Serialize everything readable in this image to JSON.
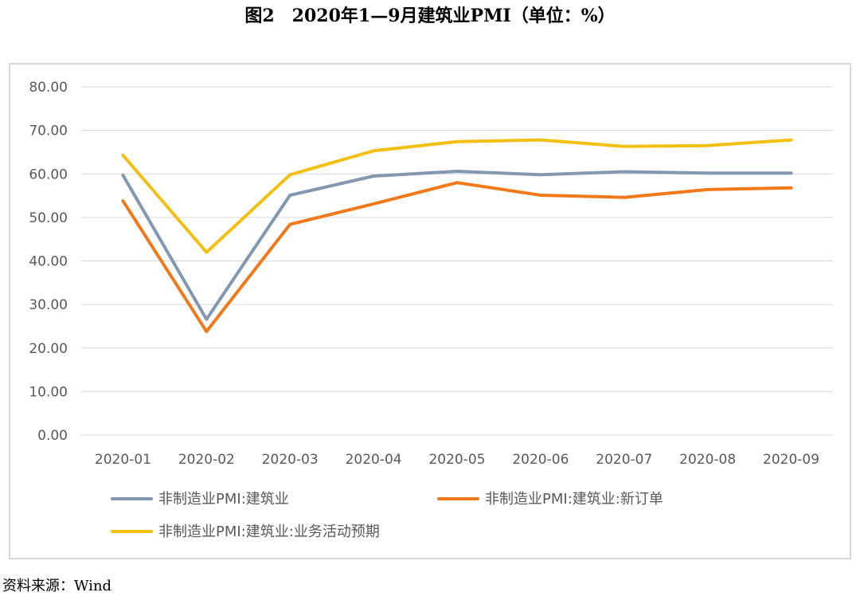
{
  "title": "图2　2020年1—9月建筑业PMI（单位：%）",
  "source": "资料来源：Wind",
  "chart_data": {
    "type": "line",
    "categories": [
      "2020-01",
      "2020-02",
      "2020-03",
      "2020-04",
      "2020-05",
      "2020-06",
      "2020-07",
      "2020-08",
      "2020-09"
    ],
    "y_ticks": [
      "0.00",
      "10.00",
      "20.00",
      "30.00",
      "40.00",
      "50.00",
      "60.00",
      "70.00",
      "80.00"
    ],
    "ylim": [
      0,
      80
    ],
    "grid": true,
    "legend_position": "bottom",
    "series": [
      {
        "name": "非制造业PMI:建筑业",
        "color": "#8497B0",
        "values": [
          59.7,
          26.6,
          55.1,
          59.5,
          60.6,
          59.8,
          60.5,
          60.2,
          60.2
        ]
      },
      {
        "name": "非制造业PMI:建筑业:新订单",
        "color": "#F07A1B",
        "values": [
          53.8,
          23.8,
          48.4,
          53.1,
          58.0,
          55.1,
          54.6,
          56.4,
          56.8
        ]
      },
      {
        "name": "非制造业PMI:建筑业:业务活动预期",
        "color": "#F2BF13",
        "values": [
          64.3,
          42.0,
          59.8,
          65.3,
          67.4,
          67.8,
          66.3,
          66.5,
          67.8
        ]
      }
    ]
  }
}
